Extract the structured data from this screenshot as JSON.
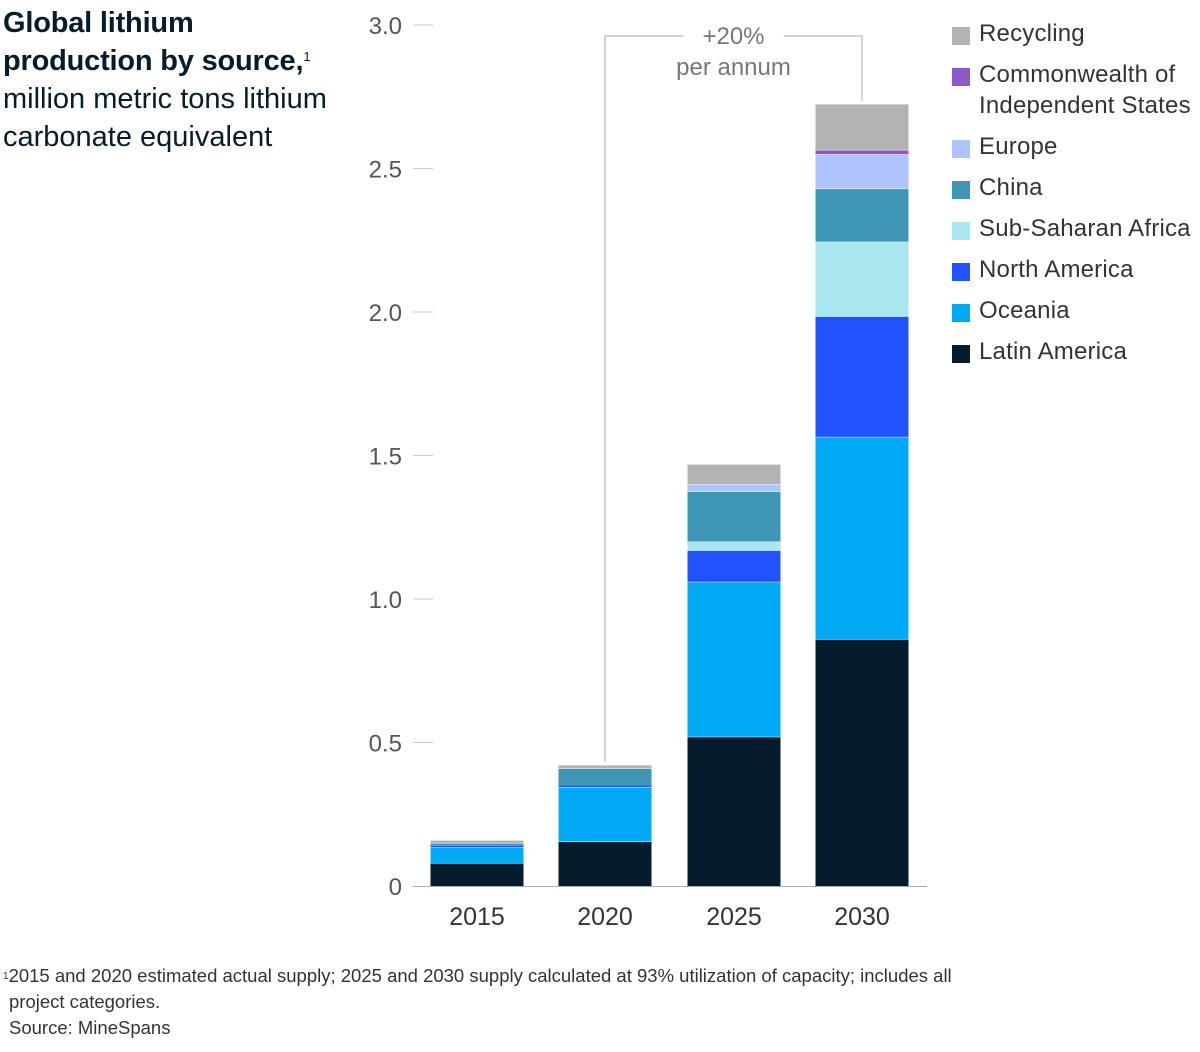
{
  "title": {
    "bold": "Global lithium production by source,",
    "sup": "1",
    "subtitle": "million metric tons lithium carbonate equivalent"
  },
  "colors": {
    "Recycling": "#b3b3b3",
    "Commonwealth of Independent States": "#8c5ac8",
    "Europe": "#afc3ff",
    "China": "#3c96b4",
    "Sub-Saharan Africa": "#aae6f0",
    "North America": "#2251ff",
    "Oceania": "#00a9f4",
    "Latin America": "#051c2c"
  },
  "chart_data": {
    "type": "bar",
    "stacked": true,
    "categories": [
      "2015",
      "2020",
      "2025",
      "2030"
    ],
    "series": [
      {
        "name": "Latin America",
        "values": [
          0.08,
          0.155,
          0.52,
          0.86
        ]
      },
      {
        "name": "Oceania",
        "values": [
          0.055,
          0.19,
          0.54,
          0.705
        ]
      },
      {
        "name": "North America",
        "values": [
          0.005,
          0.005,
          0.11,
          0.42
        ]
      },
      {
        "name": "Sub-Saharan Africa",
        "values": [
          0.0,
          0.0,
          0.03,
          0.26
        ]
      },
      {
        "name": "China",
        "values": [
          0.01,
          0.06,
          0.175,
          0.185
        ]
      },
      {
        "name": "Europe",
        "values": [
          0.0,
          0.0,
          0.025,
          0.12
        ]
      },
      {
        "name": "Commonwealth of Independent States",
        "values": [
          0.0,
          0.0,
          0.0,
          0.015
        ]
      },
      {
        "name": "Recycling",
        "values": [
          0.01,
          0.012,
          0.07,
          0.16
        ]
      }
    ],
    "ylim": [
      0,
      3.0
    ],
    "yticks": [
      "0",
      "0.5",
      "1.0",
      "1.5",
      "2.0",
      "2.5",
      "3.0"
    ],
    "ytick_values": [
      0,
      0.5,
      1.0,
      1.5,
      2.0,
      2.5,
      3.0
    ],
    "legend_order": [
      "Recycling",
      "Commonwealth of Independent States",
      "Europe",
      "China",
      "Sub-Saharan Africa",
      "North America",
      "Oceania",
      "Latin America"
    ],
    "annotation": {
      "line1": "+20%",
      "line2": "per annum",
      "from": "2020",
      "to": "2030"
    }
  },
  "footnotes": {
    "sup": "1",
    "note_line1": "2015 and 2020 estimated actual supply; 2025 and 2030 supply calculated at 93% utilization of capacity; includes all",
    "note_line2": "project categories.",
    "source": "Source: MineSpans"
  }
}
